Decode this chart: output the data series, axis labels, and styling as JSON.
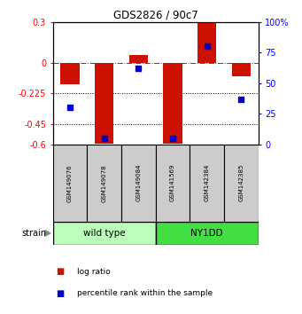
{
  "title": "GDS2826 / 90c7",
  "samples": [
    "GSM149076",
    "GSM149078",
    "GSM149084",
    "GSM141569",
    "GSM142384",
    "GSM142385"
  ],
  "log_ratio": [
    -0.155,
    -0.595,
    0.06,
    -0.595,
    0.3,
    -0.1
  ],
  "percentile_rank": [
    30,
    5,
    62,
    5,
    80,
    37
  ],
  "groups": [
    {
      "label": "wild type",
      "start": 0,
      "end": 3,
      "color": "#bbffbb"
    },
    {
      "label": "NY1DD",
      "start": 3,
      "end": 6,
      "color": "#44dd44"
    }
  ],
  "bar_color": "#cc1100",
  "dot_color": "#0000cc",
  "ylim_left": [
    -0.6,
    0.3
  ],
  "ylim_right": [
    0,
    100
  ],
  "yticks_left": [
    0.3,
    0,
    -0.225,
    -0.45,
    -0.6
  ],
  "yticks_right": [
    100,
    75,
    50,
    25,
    0
  ],
  "hline_dash": 0.0,
  "hlines_dot": [
    -0.225,
    -0.45
  ],
  "bar_width": 0.55,
  "background_color": "#ffffff",
  "legend_red": "log ratio",
  "legend_blue": "percentile rank within the sample",
  "strain_label": "strain"
}
